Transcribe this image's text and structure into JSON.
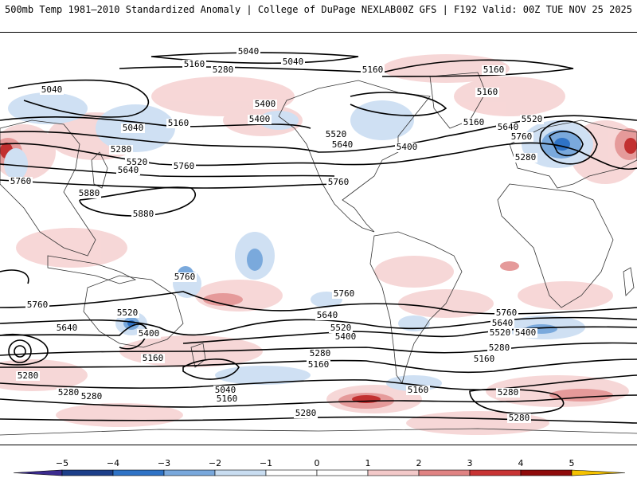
{
  "header": {
    "left_title": "500mb Temp 1981–2010 Standardized Anomaly | College of DuPage NEXLAB",
    "right_title": "00Z GFS | F192 Valid: 00Z TUE NOV 25 2025"
  },
  "colorbar": {
    "ticks": [
      "−5",
      "−4",
      "−3",
      "−2",
      "−1",
      "0",
      "1",
      "2",
      "3",
      "4",
      "5"
    ],
    "colors": [
      "#3b2b8f",
      "#1d3f8a",
      "#2f73c6",
      "#79a8dc",
      "#c9ddf1",
      "#ffffff",
      "#ffffff",
      "#f3c9c9",
      "#e08383",
      "#c83434",
      "#8f0b0b",
      "#f5c200"
    ]
  },
  "contour_labels": [
    {
      "text": "5040"
    },
    {
      "text": "5040"
    },
    {
      "text": "5160"
    },
    {
      "text": "5280"
    },
    {
      "text": "5160"
    },
    {
      "text": "5040"
    },
    {
      "text": "5400"
    },
    {
      "text": "5160"
    },
    {
      "text": "5040"
    },
    {
      "text": "5400"
    },
    {
      "text": "5280"
    },
    {
      "text": "5520"
    },
    {
      "text": "5640"
    },
    {
      "text": "5760"
    },
    {
      "text": "5160"
    },
    {
      "text": "5400"
    },
    {
      "text": "5520"
    },
    {
      "text": "5640"
    },
    {
      "text": "5400"
    },
    {
      "text": "5760"
    },
    {
      "text": "5160"
    },
    {
      "text": "5160"
    },
    {
      "text": "5280"
    },
    {
      "text": "5520"
    },
    {
      "text": "5640"
    },
    {
      "text": "5760"
    },
    {
      "text": "5760"
    },
    {
      "text": "5880"
    },
    {
      "text": "5880"
    },
    {
      "text": "5760"
    },
    {
      "text": "5760"
    },
    {
      "text": "5520"
    },
    {
      "text": "5640"
    },
    {
      "text": "5400"
    },
    {
      "text": "5760"
    },
    {
      "text": "5640"
    },
    {
      "text": "5520"
    },
    {
      "text": "5400"
    },
    {
      "text": "5160"
    },
    {
      "text": "5280"
    },
    {
      "text": "5160"
    },
    {
      "text": "5040"
    },
    {
      "text": "5160"
    },
    {
      "text": "5280"
    },
    {
      "text": "5280"
    },
    {
      "text": "5280"
    },
    {
      "text": "5760"
    },
    {
      "text": "5640"
    },
    {
      "text": "5520"
    },
    {
      "text": "5400"
    },
    {
      "text": "5280"
    },
    {
      "text": "5160"
    },
    {
      "text": "5280"
    },
    {
      "text": "5160"
    },
    {
      "text": "5280"
    },
    {
      "text": "5280"
    }
  ]
}
